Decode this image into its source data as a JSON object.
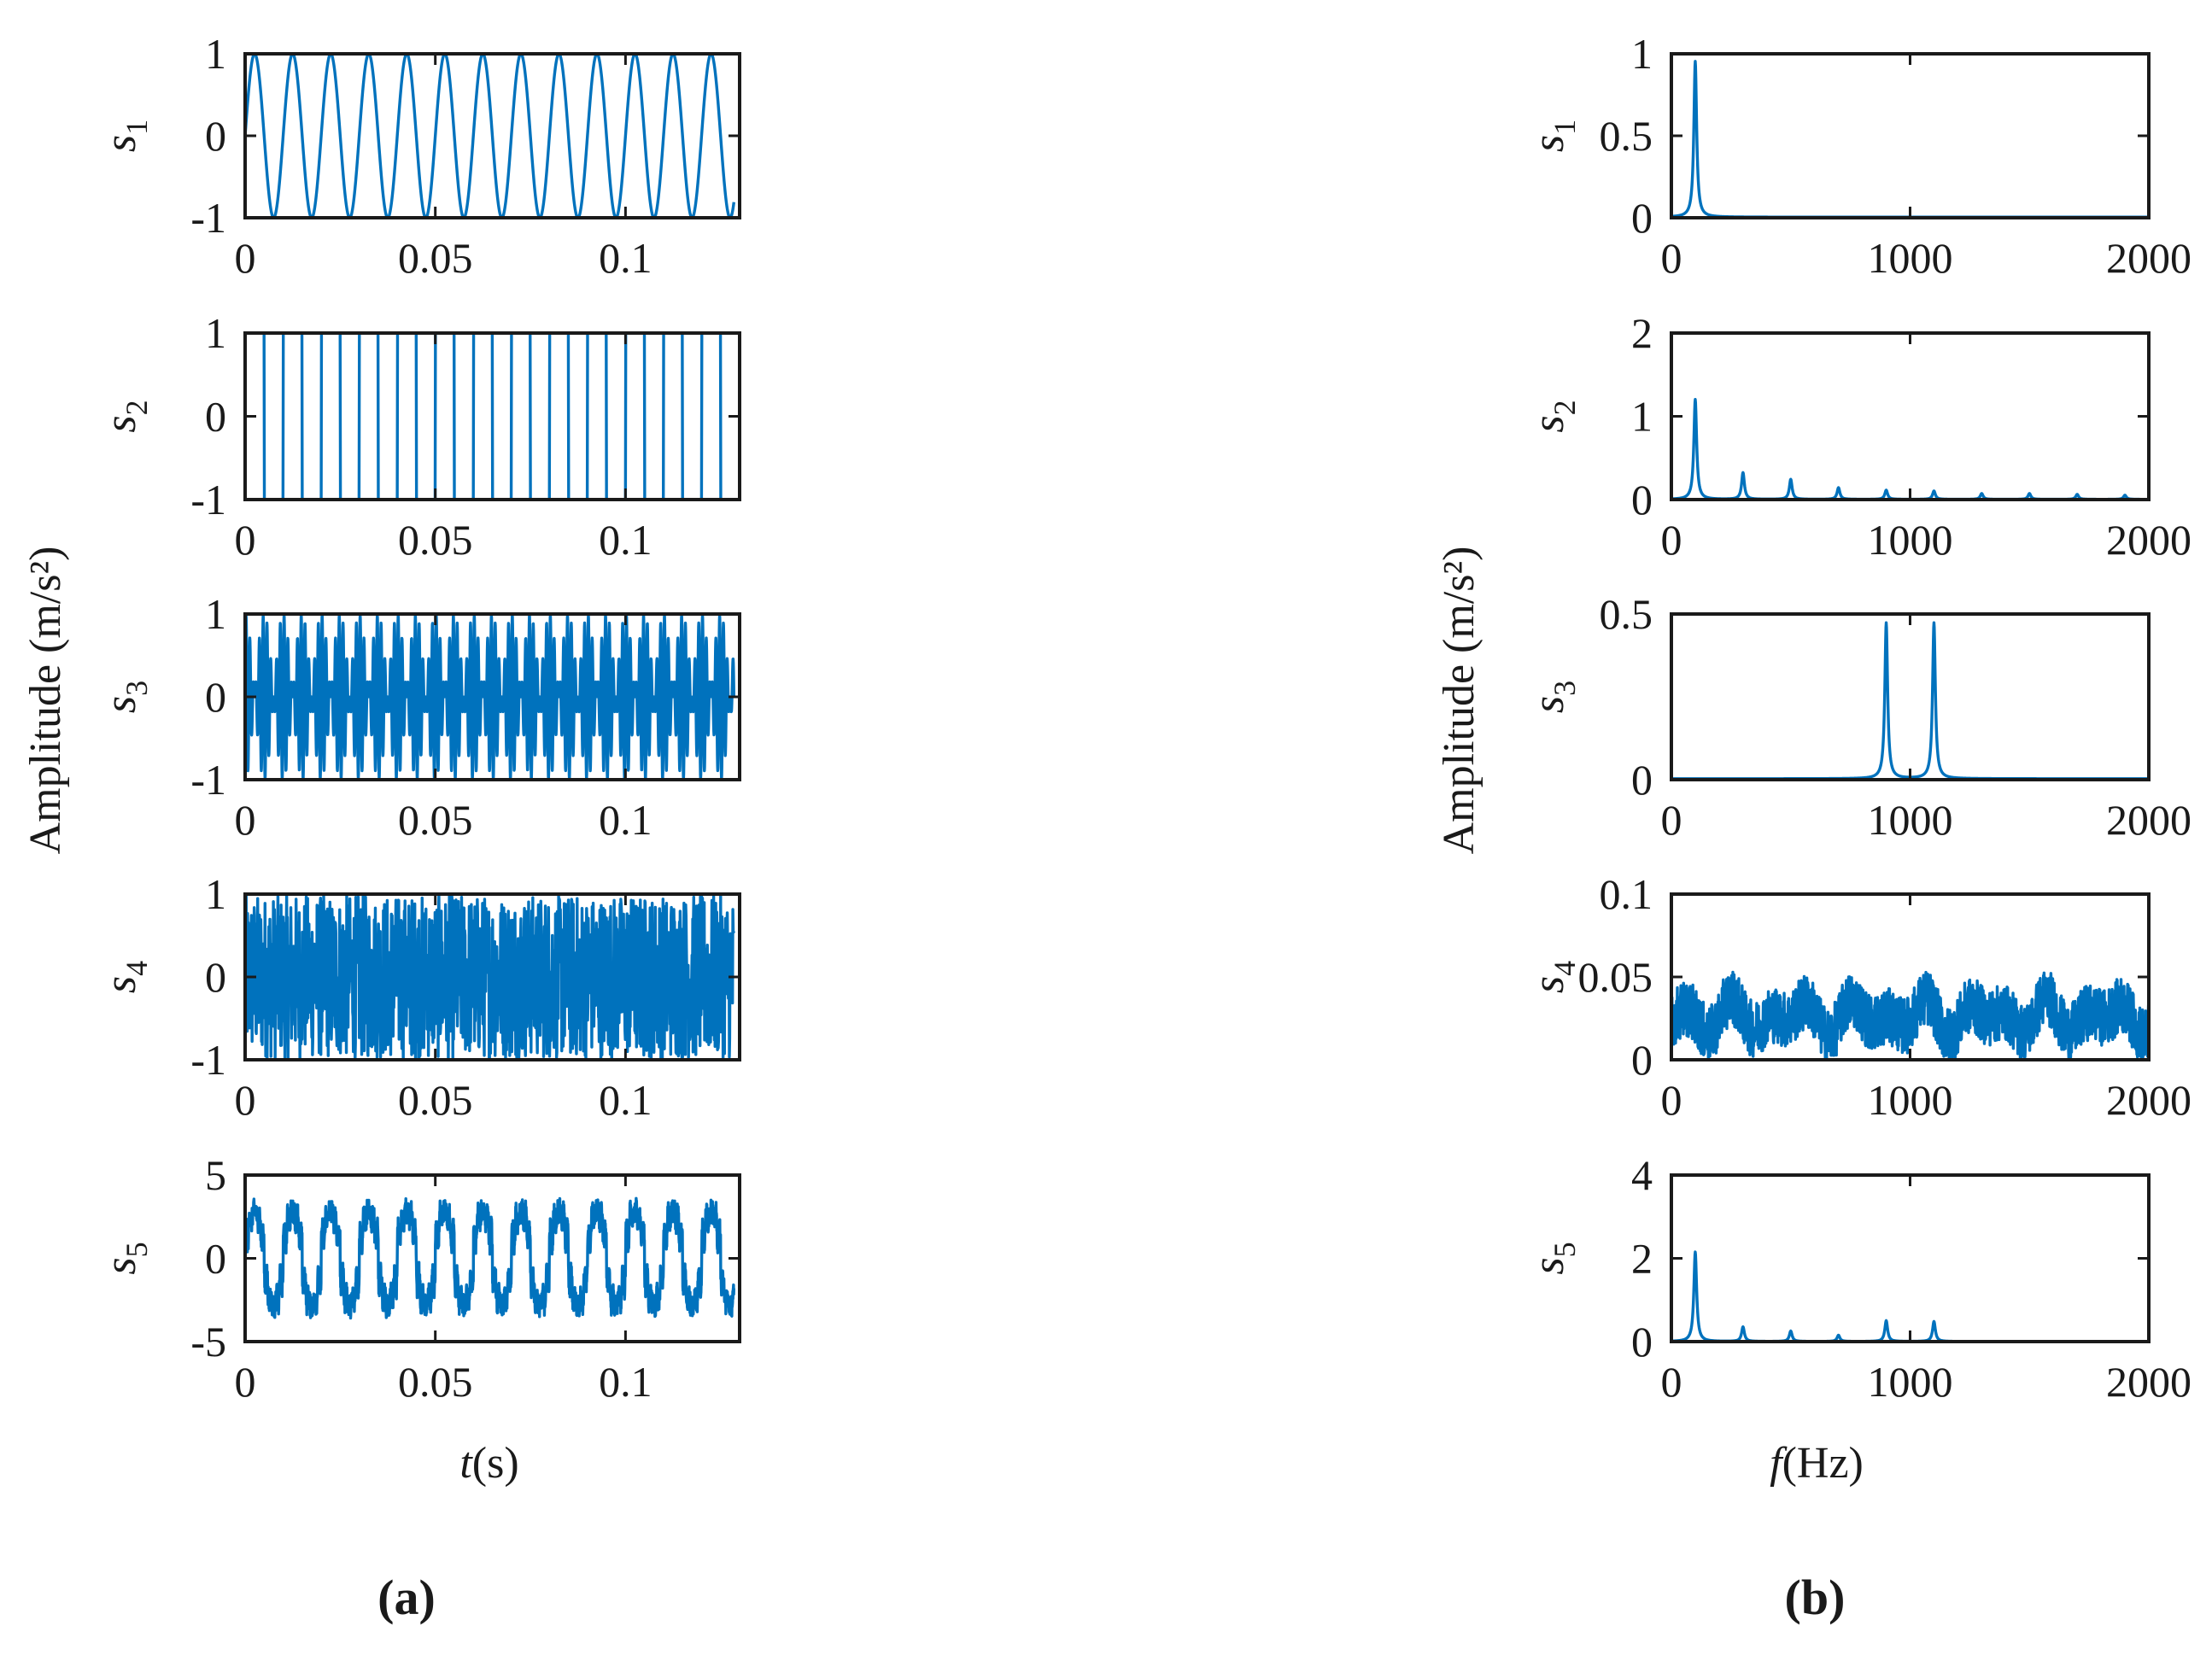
{
  "figure": {
    "panel_labels": [
      "(a)",
      "(b)"
    ],
    "left_ylabel": "Amplitude (m/s²)",
    "right_ylabel": "Amplitude (m/s²)",
    "left_xlabel": {
      "italic": "t",
      "rest": "(s)"
    },
    "right_xlabel": {
      "italic": "f",
      "rest": "(Hz)"
    },
    "line_color": "#0072BD"
  },
  "chart_data": [
    {
      "panel": "a",
      "type": "line",
      "signal": "s1",
      "ylabel": "s",
      "ysub": "1",
      "xlim": [
        0,
        0.13
      ],
      "ylim": [
        -1,
        1
      ],
      "xticks": [
        0,
        0.05,
        0.1
      ],
      "xtick_labels": [
        "0",
        "0.05",
        "0.1"
      ],
      "yticks": [
        -1,
        0,
        1
      ],
      "ytick_labels": [
        "-1",
        "0",
        "1"
      ],
      "description": "sine wave, 100 Hz, amplitude 1"
    },
    {
      "panel": "a",
      "type": "line",
      "signal": "s2",
      "ylabel": "s",
      "ysub": "2",
      "xlim": [
        0,
        0.13
      ],
      "ylim": [
        -1,
        1
      ],
      "xticks": [
        0,
        0.05,
        0.1
      ],
      "xtick_labels": [
        "0",
        "0.05",
        "0.1"
      ],
      "yticks": [
        -1,
        0,
        1
      ],
      "ytick_labels": [
        "-1",
        "0",
        "1"
      ],
      "description": "square wave, 100 Hz, amplitude 1"
    },
    {
      "panel": "a",
      "type": "line",
      "signal": "s3",
      "ylabel": "s",
      "ysub": "3",
      "xlim": [
        0,
        0.13
      ],
      "ylim": [
        -1,
        1
      ],
      "xticks": [
        0,
        0.05,
        0.1
      ],
      "xtick_labels": [
        "0",
        "0.05",
        "0.1"
      ],
      "yticks": [
        -1,
        0,
        1
      ],
      "ytick_labels": [
        "-1",
        "0",
        "1"
      ],
      "description": "amplitude-modulated signal, components at 900 Hz and 1100 Hz"
    },
    {
      "panel": "a",
      "type": "line",
      "signal": "s4",
      "ylabel": "s",
      "ysub": "4",
      "xlim": [
        0,
        0.13
      ],
      "ylim": [
        -1,
        1
      ],
      "xticks": [
        0,
        0.05,
        0.1
      ],
      "xtick_labels": [
        "0",
        "0.05",
        "0.1"
      ],
      "yticks": [
        -1,
        0,
        1
      ],
      "ytick_labels": [
        "-1",
        "0",
        "1"
      ],
      "description": "random noise in [-1, 1]"
    },
    {
      "panel": "a",
      "type": "line",
      "signal": "s5",
      "ylabel": "s",
      "ysub": "5",
      "xlim": [
        0,
        0.13
      ],
      "ylim": [
        -5,
        5
      ],
      "xticks": [
        0,
        0.05,
        0.1
      ],
      "xtick_labels": [
        "0",
        "0.05",
        "0.1"
      ],
      "yticks": [
        -5,
        0,
        5
      ],
      "ytick_labels": [
        "-5",
        "0",
        "5"
      ],
      "description": "mixture of s1 to s4, range about -4 to 4"
    },
    {
      "panel": "b",
      "type": "line",
      "signal": "s1",
      "ylabel": "s",
      "ysub": "1",
      "xlim": [
        0,
        2000
      ],
      "ylim": [
        0,
        1
      ],
      "xticks": [
        0,
        1000,
        2000
      ],
      "xtick_labels": [
        "0",
        "1000",
        "2000"
      ],
      "yticks": [
        0,
        0.5,
        1
      ],
      "ytick_labels": [
        "0",
        "0.5",
        "1"
      ],
      "peaks": [
        {
          "f": 100,
          "a": 0.95
        }
      ]
    },
    {
      "panel": "b",
      "type": "line",
      "signal": "s2",
      "ylabel": "s",
      "ysub": "2",
      "xlim": [
        0,
        2000
      ],
      "ylim": [
        0,
        2
      ],
      "xticks": [
        0,
        1000,
        2000
      ],
      "xtick_labels": [
        "0",
        "1000",
        "2000"
      ],
      "yticks": [
        0,
        1,
        2
      ],
      "ytick_labels": [
        "0",
        "1",
        "2"
      ],
      "peaks": [
        {
          "f": 100,
          "a": 1.2
        },
        {
          "f": 300,
          "a": 0.32
        },
        {
          "f": 500,
          "a": 0.24
        },
        {
          "f": 700,
          "a": 0.14
        },
        {
          "f": 900,
          "a": 0.11
        },
        {
          "f": 1100,
          "a": 0.1
        },
        {
          "f": 1300,
          "a": 0.07
        },
        {
          "f": 1500,
          "a": 0.07
        },
        {
          "f": 1700,
          "a": 0.06
        },
        {
          "f": 1900,
          "a": 0.05
        }
      ]
    },
    {
      "panel": "b",
      "type": "line",
      "signal": "s3",
      "ylabel": "s",
      "ysub": "3",
      "xlim": [
        0,
        2000
      ],
      "ylim": [
        0,
        0.5
      ],
      "xticks": [
        0,
        1000,
        2000
      ],
      "xtick_labels": [
        "0",
        "1000",
        "2000"
      ],
      "yticks": [
        0,
        0.5
      ],
      "ytick_labels": [
        "0",
        "0.5"
      ],
      "peaks": [
        {
          "f": 900,
          "a": 0.47
        },
        {
          "f": 1100,
          "a": 0.47
        }
      ]
    },
    {
      "panel": "b",
      "type": "line",
      "signal": "s4",
      "ylabel": "s",
      "ysub": "4",
      "xlim": [
        0,
        2000
      ],
      "ylim": [
        0,
        0.1
      ],
      "xticks": [
        0,
        1000,
        2000
      ],
      "xtick_labels": [
        "0",
        "1000",
        "2000"
      ],
      "yticks": [
        0,
        0.05,
        0.1
      ],
      "ytick_labels": [
        "0",
        "0.05",
        "0.1"
      ],
      "description": "broadband noise spectrum, approx 0.005 to 0.06, mean about 0.025"
    },
    {
      "panel": "b",
      "type": "line",
      "signal": "s5",
      "ylabel": "s",
      "ysub": "5",
      "xlim": [
        0,
        2000
      ],
      "ylim": [
        0,
        4
      ],
      "xticks": [
        0,
        1000,
        2000
      ],
      "xtick_labels": [
        "0",
        "1000",
        "2000"
      ],
      "yticks": [
        0,
        2,
        4
      ],
      "ytick_labels": [
        "0",
        "2",
        "4"
      ],
      "peaks": [
        {
          "f": 100,
          "a": 2.15
        },
        {
          "f": 300,
          "a": 0.35
        },
        {
          "f": 500,
          "a": 0.25
        },
        {
          "f": 700,
          "a": 0.15
        },
        {
          "f": 900,
          "a": 0.5
        },
        {
          "f": 1100,
          "a": 0.48
        }
      ]
    }
  ]
}
